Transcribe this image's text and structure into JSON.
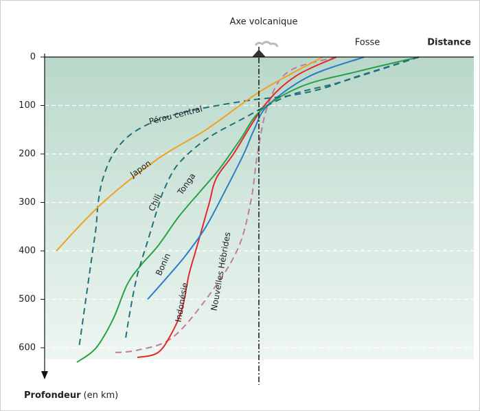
{
  "chart_data": {
    "type": "line",
    "top_label": "Axe volcanique",
    "trench_label": "Fosse",
    "x_label": "Distance",
    "y_label": "Profondeur",
    "y_unit": "(en km)",
    "ylim": [
      0,
      650
    ],
    "yticks": [
      0,
      100,
      200,
      300,
      400,
      500,
      600
    ],
    "xlim": [
      -312,
      313
    ],
    "grid": true,
    "series": [
      {
        "name": "Nouvelles Hébrides",
        "color": "#c07aa0",
        "style": "dashed",
        "x": [
          113,
          43,
          13,
          -2,
          -12,
          -32,
          -77,
          -127,
          -177,
          -214
        ],
        "values": [
          0,
          30,
          100,
          200,
          300,
          400,
          500,
          580,
          605,
          610
        ]
      },
      {
        "name": "Indonésie",
        "color": "#e3262e",
        "style": "solid",
        "x": [
          113,
          53,
          8,
          -37,
          -62,
          -72,
          -82,
          -92,
          -102,
          -112,
          -127,
          -147,
          -177
        ],
        "values": [
          0,
          40,
          100,
          200,
          250,
          300,
          350,
          400,
          450,
          520,
          570,
          610,
          620
        ]
      },
      {
        "name": "Bonin",
        "color": "#2a7cc7",
        "style": "solid",
        "x": [
          153,
          73,
          13,
          -7,
          -22,
          -47,
          -77,
          -107,
          -137,
          -162
        ],
        "values": [
          0,
          40,
          100,
          150,
          200,
          270,
          350,
          410,
          460,
          500
        ]
      },
      {
        "name": "Tonga",
        "color": "#27a048",
        "style": "solid",
        "x": [
          233,
          143,
          63,
          3,
          -27,
          -57,
          -87,
          -117,
          -147,
          -172,
          -192,
          -212,
          -237,
          -265
        ],
        "values": [
          0,
          30,
          60,
          110,
          170,
          230,
          280,
          330,
          390,
          430,
          470,
          540,
          600,
          630
        ]
      },
      {
        "name": "Chili",
        "color": "#1f6f7a",
        "style": "dashed",
        "x": [
          233,
          123,
          43,
          -27,
          -77,
          -117,
          -137,
          -147,
          -162,
          -177,
          -187,
          -194
        ],
        "values": [
          0,
          50,
          80,
          130,
          170,
          220,
          270,
          310,
          380,
          450,
          520,
          580
        ]
      },
      {
        "name": "Pérou central",
        "color": "#1f6f7a",
        "style": "dashed",
        "x": [
          233,
          143,
          93,
          43,
          -17,
          -97,
          -147,
          -187,
          -212,
          -227,
          -234,
          -237,
          -242,
          -252,
          -262
        ],
        "values": [
          0,
          40,
          65,
          80,
          90,
          110,
          130,
          160,
          200,
          250,
          300,
          350,
          400,
          500,
          600
        ]
      },
      {
        "name": "Japon",
        "color": "#f0a020",
        "style": "solid",
        "x": [
          93,
          3,
          -77,
          -147,
          -227,
          -295
        ],
        "values": [
          0,
          70,
          150,
          210,
          300,
          400
        ]
      }
    ]
  }
}
